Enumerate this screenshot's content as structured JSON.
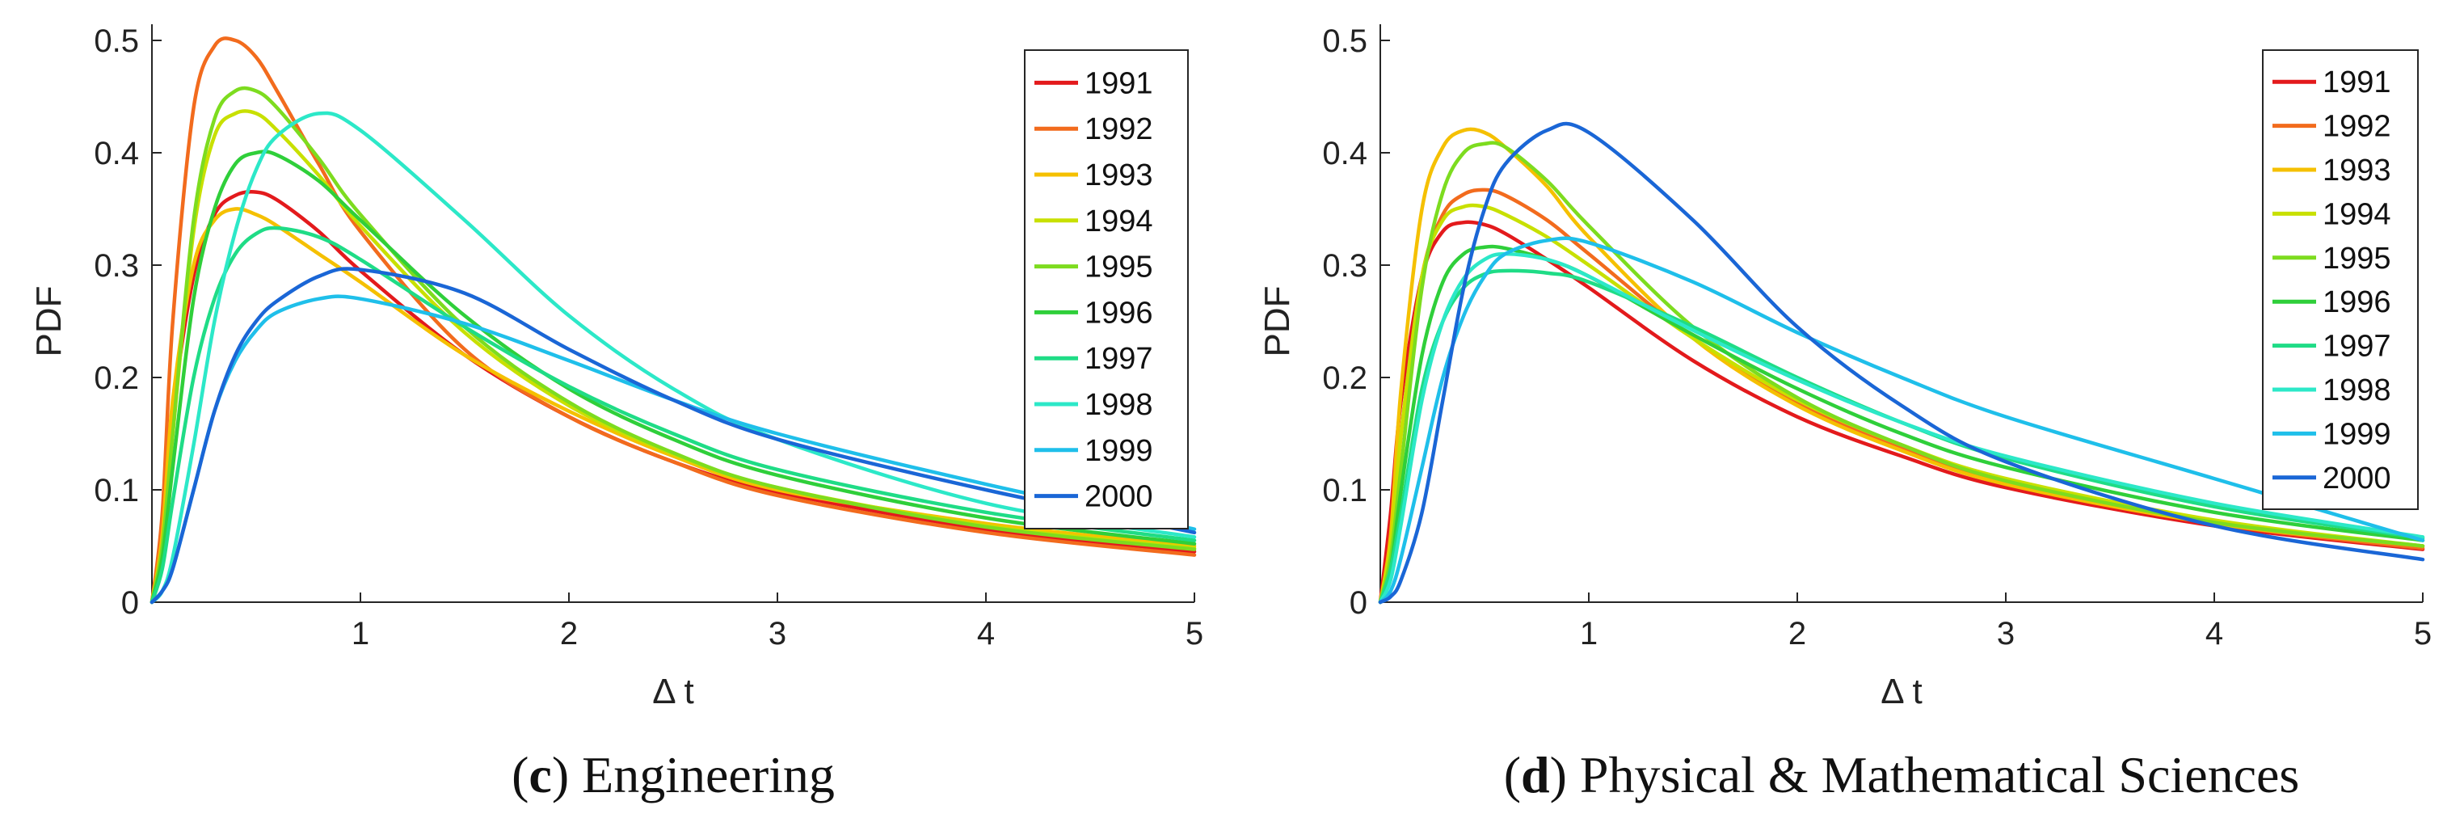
{
  "chart_data": [
    {
      "type": "line",
      "panel_letter": "c",
      "caption": "Engineering",
      "xlabel": "Δ t",
      "ylabel": "PDF",
      "xlim": [
        0,
        5
      ],
      "ylim": [
        0,
        0.5
      ],
      "xticks": [
        1,
        2,
        3,
        4,
        5
      ],
      "yticks": [
        0,
        0.1,
        0.2,
        0.3,
        0.4,
        0.5
      ],
      "legend_position": "top-right",
      "series": [
        {
          "name": "1991",
          "color": "#e31a1c",
          "x": [
            0,
            0.05,
            0.1,
            0.2,
            0.3,
            0.4,
            0.5,
            0.6,
            0.8,
            1,
            1.5,
            2,
            2.5,
            3,
            4,
            5
          ],
          "values": [
            0,
            0.06,
            0.17,
            0.29,
            0.345,
            0.362,
            0.365,
            0.358,
            0.33,
            0.295,
            0.22,
            0.165,
            0.125,
            0.098,
            0.065,
            0.045
          ]
        },
        {
          "name": "1992",
          "color": "#f26b1d",
          "x": [
            0,
            0.05,
            0.1,
            0.2,
            0.3,
            0.4,
            0.5,
            0.6,
            0.8,
            1,
            1.5,
            2,
            2.5,
            3,
            4,
            5
          ],
          "values": [
            0,
            0.08,
            0.25,
            0.44,
            0.495,
            0.5,
            0.485,
            0.455,
            0.39,
            0.33,
            0.225,
            0.165,
            0.125,
            0.095,
            0.062,
            0.042
          ]
        },
        {
          "name": "1993",
          "color": "#f5c000",
          "x": [
            0,
            0.05,
            0.1,
            0.2,
            0.3,
            0.4,
            0.5,
            0.6,
            0.8,
            1,
            1.5,
            2,
            2.5,
            3,
            4,
            5
          ],
          "values": [
            0,
            0.06,
            0.18,
            0.3,
            0.34,
            0.35,
            0.345,
            0.335,
            0.31,
            0.285,
            0.22,
            0.17,
            0.13,
            0.1,
            0.07,
            0.05
          ]
        },
        {
          "name": "1994",
          "color": "#c8e000",
          "x": [
            0,
            0.05,
            0.1,
            0.2,
            0.3,
            0.4,
            0.5,
            0.6,
            0.8,
            1,
            1.5,
            2,
            2.5,
            3,
            4,
            5
          ],
          "values": [
            0,
            0.05,
            0.15,
            0.33,
            0.415,
            0.435,
            0.435,
            0.42,
            0.38,
            0.335,
            0.24,
            0.175,
            0.132,
            0.102,
            0.068,
            0.048
          ]
        },
        {
          "name": "1995",
          "color": "#7ddc1f",
          "x": [
            0,
            0.05,
            0.1,
            0.2,
            0.3,
            0.4,
            0.5,
            0.6,
            0.8,
            1,
            1.5,
            2,
            2.5,
            3,
            4,
            5
          ],
          "values": [
            0,
            0.05,
            0.15,
            0.34,
            0.43,
            0.455,
            0.455,
            0.44,
            0.395,
            0.345,
            0.245,
            0.178,
            0.133,
            0.102,
            0.067,
            0.047
          ]
        },
        {
          "name": "1996",
          "color": "#2fcf3a",
          "x": [
            0,
            0.05,
            0.1,
            0.2,
            0.3,
            0.4,
            0.5,
            0.6,
            0.8,
            1,
            1.5,
            2,
            2.5,
            3,
            4,
            5
          ],
          "values": [
            0,
            0.04,
            0.12,
            0.27,
            0.35,
            0.39,
            0.4,
            0.398,
            0.375,
            0.34,
            0.255,
            0.19,
            0.145,
            0.113,
            0.075,
            0.052
          ]
        },
        {
          "name": "1997",
          "color": "#1fdc86",
          "x": [
            0,
            0.05,
            0.1,
            0.2,
            0.3,
            0.4,
            0.5,
            0.6,
            0.8,
            1,
            1.5,
            2,
            2.5,
            3,
            4,
            5
          ],
          "values": [
            0,
            0.03,
            0.09,
            0.2,
            0.27,
            0.31,
            0.328,
            0.333,
            0.325,
            0.305,
            0.245,
            0.192,
            0.15,
            0.118,
            0.08,
            0.055
          ]
        },
        {
          "name": "1998",
          "color": "#2ce8c8",
          "x": [
            0,
            0.05,
            0.1,
            0.2,
            0.3,
            0.4,
            0.5,
            0.6,
            0.8,
            1,
            1.5,
            2,
            2.5,
            3,
            4,
            5
          ],
          "values": [
            0,
            0.01,
            0.04,
            0.14,
            0.25,
            0.33,
            0.385,
            0.415,
            0.435,
            0.42,
            0.34,
            0.255,
            0.19,
            0.145,
            0.088,
            0.058
          ]
        },
        {
          "name": "1999",
          "color": "#1fbfea",
          "x": [
            0,
            0.05,
            0.1,
            0.2,
            0.3,
            0.4,
            0.5,
            0.6,
            0.8,
            1,
            1.5,
            2,
            2.5,
            3,
            4,
            5
          ],
          "values": [
            0,
            0.01,
            0.03,
            0.1,
            0.17,
            0.215,
            0.242,
            0.258,
            0.27,
            0.27,
            0.248,
            0.215,
            0.18,
            0.15,
            0.105,
            0.065
          ]
        },
        {
          "name": "2000",
          "color": "#1a66d6",
          "x": [
            0,
            0.05,
            0.1,
            0.2,
            0.3,
            0.4,
            0.5,
            0.6,
            0.8,
            1,
            1.5,
            2,
            2.5,
            3,
            4,
            5
          ],
          "values": [
            0,
            0.01,
            0.03,
            0.1,
            0.17,
            0.22,
            0.25,
            0.268,
            0.29,
            0.296,
            0.275,
            0.225,
            0.18,
            0.145,
            0.1,
            0.062
          ]
        }
      ]
    },
    {
      "type": "line",
      "panel_letter": "d",
      "caption": "Physical & Mathematical Sciences",
      "xlabel": "Δ t",
      "ylabel": "PDF",
      "xlim": [
        0,
        5
      ],
      "ylim": [
        0,
        0.5
      ],
      "xticks": [
        1,
        2,
        3,
        4,
        5
      ],
      "yticks": [
        0,
        0.1,
        0.2,
        0.3,
        0.4,
        0.5
      ],
      "legend_position": "top-right",
      "series": [
        {
          "name": "1991",
          "color": "#e31a1c",
          "x": [
            0,
            0.05,
            0.1,
            0.2,
            0.3,
            0.4,
            0.5,
            0.6,
            0.8,
            1,
            1.5,
            2,
            2.5,
            3,
            4,
            5
          ],
          "values": [
            0,
            0.08,
            0.18,
            0.29,
            0.33,
            0.338,
            0.336,
            0.328,
            0.305,
            0.28,
            0.215,
            0.165,
            0.13,
            0.102,
            0.068,
            0.047
          ]
        },
        {
          "name": "1992",
          "color": "#f26b1d",
          "x": [
            0,
            0.05,
            0.1,
            0.2,
            0.3,
            0.4,
            0.5,
            0.6,
            0.8,
            1,
            1.5,
            2,
            2.5,
            3,
            4,
            5
          ],
          "values": [
            0,
            0.05,
            0.15,
            0.29,
            0.345,
            0.363,
            0.367,
            0.362,
            0.34,
            0.31,
            0.235,
            0.178,
            0.138,
            0.108,
            0.07,
            0.048
          ]
        },
        {
          "name": "1993",
          "color": "#f5c000",
          "x": [
            0,
            0.05,
            0.1,
            0.2,
            0.3,
            0.4,
            0.5,
            0.6,
            0.8,
            1,
            1.5,
            2,
            2.5,
            3,
            4,
            5
          ],
          "values": [
            0,
            0.06,
            0.19,
            0.35,
            0.405,
            0.42,
            0.418,
            0.405,
            0.37,
            0.325,
            0.235,
            0.175,
            0.135,
            0.105,
            0.07,
            0.05
          ]
        },
        {
          "name": "1994",
          "color": "#c8e000",
          "x": [
            0,
            0.05,
            0.1,
            0.2,
            0.3,
            0.4,
            0.5,
            0.6,
            0.8,
            1,
            1.5,
            2,
            2.5,
            3,
            4,
            5
          ],
          "values": [
            0,
            0.05,
            0.15,
            0.29,
            0.34,
            0.352,
            0.352,
            0.345,
            0.325,
            0.3,
            0.235,
            0.18,
            0.14,
            0.11,
            0.073,
            0.05
          ]
        },
        {
          "name": "1995",
          "color": "#7ddc1f",
          "x": [
            0,
            0.05,
            0.1,
            0.2,
            0.3,
            0.4,
            0.5,
            0.6,
            0.8,
            1,
            1.5,
            2,
            2.5,
            3,
            4,
            5
          ],
          "values": [
            0,
            0.04,
            0.12,
            0.28,
            0.365,
            0.4,
            0.408,
            0.405,
            0.375,
            0.335,
            0.245,
            0.182,
            0.14,
            0.108,
            0.071,
            0.05
          ]
        },
        {
          "name": "1996",
          "color": "#2fcf3a",
          "x": [
            0,
            0.05,
            0.1,
            0.2,
            0.3,
            0.4,
            0.5,
            0.6,
            0.8,
            1,
            1.5,
            2,
            2.5,
            3,
            4,
            5
          ],
          "values": [
            0,
            0.03,
            0.1,
            0.22,
            0.285,
            0.31,
            0.316,
            0.315,
            0.305,
            0.29,
            0.238,
            0.19,
            0.15,
            0.12,
            0.08,
            0.055
          ]
        },
        {
          "name": "1997",
          "color": "#1fdc86",
          "x": [
            0,
            0.05,
            0.1,
            0.2,
            0.3,
            0.4,
            0.5,
            0.6,
            0.8,
            1,
            1.5,
            2,
            2.5,
            3,
            4,
            5
          ],
          "values": [
            0,
            0.03,
            0.08,
            0.19,
            0.25,
            0.28,
            0.292,
            0.295,
            0.293,
            0.285,
            0.245,
            0.2,
            0.16,
            0.128,
            0.085,
            0.057
          ]
        },
        {
          "name": "1998",
          "color": "#2ce8c8",
          "x": [
            0,
            0.05,
            0.1,
            0.2,
            0.3,
            0.4,
            0.5,
            0.6,
            0.8,
            1,
            1.5,
            2,
            2.5,
            3,
            4,
            5
          ],
          "values": [
            0,
            0.02,
            0.07,
            0.18,
            0.25,
            0.288,
            0.305,
            0.31,
            0.305,
            0.29,
            0.242,
            0.198,
            0.16,
            0.13,
            0.088,
            0.058
          ]
        },
        {
          "name": "1999",
          "color": "#1fbfea",
          "x": [
            0,
            0.05,
            0.1,
            0.2,
            0.3,
            0.4,
            0.5,
            0.6,
            0.8,
            1,
            1.5,
            2,
            2.5,
            3,
            4,
            5
          ],
          "values": [
            0,
            0.01,
            0.04,
            0.12,
            0.2,
            0.255,
            0.29,
            0.31,
            0.322,
            0.32,
            0.285,
            0.24,
            0.2,
            0.165,
            0.11,
            0.055
          ]
        },
        {
          "name": "2000",
          "color": "#1a66d6",
          "x": [
            0,
            0.05,
            0.1,
            0.2,
            0.3,
            0.4,
            0.5,
            0.6,
            0.8,
            1,
            1.5,
            2,
            2.5,
            3,
            4,
            5
          ],
          "values": [
            0,
            0.005,
            0.02,
            0.08,
            0.18,
            0.28,
            0.35,
            0.39,
            0.42,
            0.418,
            0.34,
            0.245,
            0.175,
            0.125,
            0.068,
            0.038
          ]
        }
      ]
    }
  ]
}
